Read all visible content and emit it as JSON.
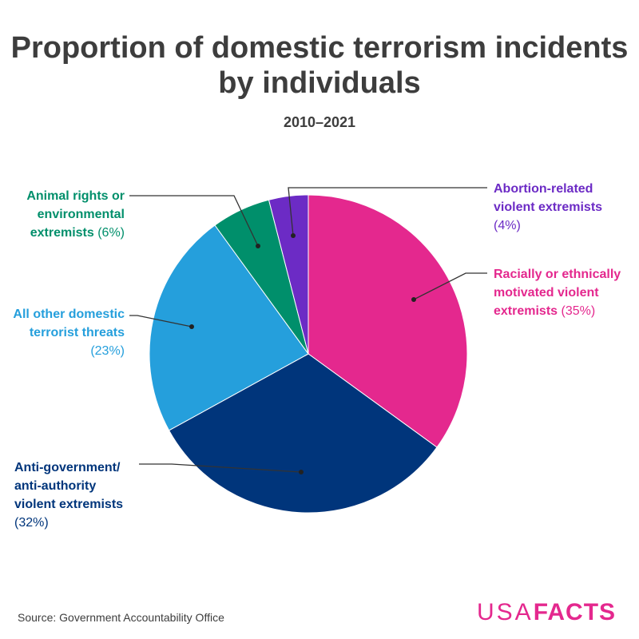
{
  "chart_data": {
    "type": "pie",
    "title": "Proportion of domestic terrorism incidents by individuals",
    "subtitle": "2010–2021",
    "slices": [
      {
        "label": "Racially or ethnically motivated violent extremists",
        "value": 35,
        "pct_text": "(35%)",
        "color": "#e4288e"
      },
      {
        "label": "Anti-government/ anti-authority violent extremists",
        "value": 32,
        "pct_text": "(32%)",
        "color": "#00357b"
      },
      {
        "label": "All other domestic terrorist threats",
        "value": 23,
        "pct_text": "(23%)",
        "color": "#259fdc"
      },
      {
        "label": "Animal rights or environmental extremists",
        "value": 6,
        "pct_text": "(6%)",
        "color": "#008f6b"
      },
      {
        "label": "Abortion-related violent extremists",
        "value": 4,
        "pct_text": "(4%)",
        "color": "#6c2bc5"
      }
    ]
  },
  "source": "Source: Government Accountability Office",
  "logo": {
    "part1": "USA",
    "part2": "FACTS",
    "color": "#e4288e"
  }
}
